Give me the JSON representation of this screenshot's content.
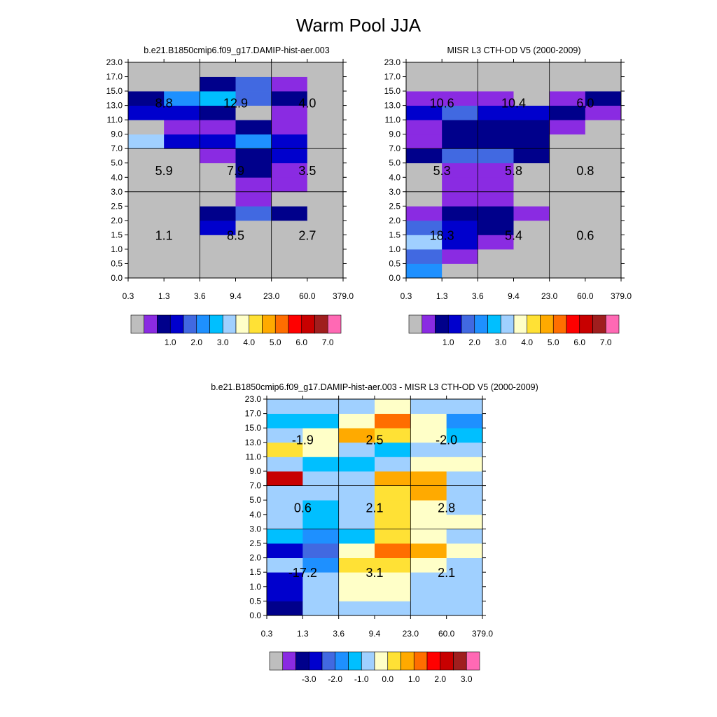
{
  "title": "Warm Pool JJA",
  "palette": {
    "gray": "#bebebe",
    "colors": [
      "#bebebe",
      "#8a2be2",
      "#00008b",
      "#0000cd",
      "#4169e1",
      "#1e90ff",
      "#00bfff",
      "#a0d0ff",
      "#ffffc8",
      "#ffe135",
      "#ffaa00",
      "#ff6e00",
      "#ff0000",
      "#c80000",
      "#a01e1e",
      "#ff69b4"
    ],
    "missing_color": "gray"
  },
  "chart_data": [
    {
      "type": "heatmap",
      "title": "b.e21.B1850cmip6.f09_g17.DAMIP-hist-aer.003",
      "xlabel": "",
      "ylabel": "",
      "x_ticks": [
        "0.3",
        "1.3",
        "3.6",
        "9.4",
        "23.0",
        "60.0",
        "379.0"
      ],
      "y_ticks": [
        "0.0",
        "0.5",
        "1.0",
        "1.5",
        "2.0",
        "2.5",
        "3.0",
        "4.0",
        "5.0",
        "7.0",
        "9.0",
        "11.0",
        "13.0",
        "15.0",
        "17.0",
        "23.0"
      ],
      "box_dividers_x": [
        "3.6",
        "23.0"
      ],
      "box_dividers_y": [
        "3.0",
        "7.0"
      ],
      "cells": [
        [
          "0",
          "0",
          "0",
          "0",
          "0",
          "0"
        ],
        [
          "0",
          "0",
          "0",
          "0",
          "0",
          "0"
        ],
        [
          "0",
          "0",
          "0",
          "0",
          "0",
          "0"
        ],
        [
          "0",
          "0",
          "3",
          "0",
          "0",
          "0"
        ],
        [
          "0",
          "0",
          "2",
          "4",
          "2",
          "0"
        ],
        [
          "0",
          "0",
          "0",
          "1",
          "0",
          "0"
        ],
        [
          "0",
          "0",
          "0",
          "1",
          "1",
          "0"
        ],
        [
          "0",
          "0",
          "0",
          "2",
          "1",
          "0"
        ],
        [
          "0",
          "0",
          "1",
          "2",
          "3",
          "0"
        ],
        [
          "7",
          "3",
          "3",
          "5",
          "3",
          "0"
        ],
        [
          "0",
          "1",
          "1",
          "2",
          "1",
          "0"
        ],
        [
          "3",
          "3",
          "2",
          "0",
          "1",
          "0"
        ],
        [
          "2",
          "5",
          "6",
          "4",
          "2",
          "0"
        ],
        [
          "0",
          "0",
          "2",
          "4",
          "1",
          "0"
        ],
        [
          "0",
          "0",
          "0",
          "0",
          "0",
          "0"
        ]
      ],
      "box_values": [
        [
          "1.1",
          "8.5",
          "2.7"
        ],
        [
          "5.9",
          "7.9",
          "3.5"
        ],
        [
          "8.8",
          "12.9",
          "4.0"
        ]
      ],
      "colorbar_labels": [
        "1.0",
        "2.0",
        "3.0",
        "4.0",
        "5.0",
        "6.0",
        "7.0"
      ]
    },
    {
      "type": "heatmap",
      "title": "MISR L3 CTH-OD V5 (2000-2009)",
      "xlabel": "",
      "ylabel": "",
      "x_ticks": [
        "0.3",
        "1.3",
        "3.6",
        "9.4",
        "23.0",
        "60.0",
        "379.0"
      ],
      "y_ticks": [
        "0.0",
        "0.5",
        "1.0",
        "1.5",
        "2.0",
        "2.5",
        "3.0",
        "4.0",
        "5.0",
        "7.0",
        "9.0",
        "11.0",
        "13.0",
        "15.0",
        "17.0",
        "23.0"
      ],
      "box_dividers_x": [
        "3.6",
        "23.0"
      ],
      "box_dividers_y": [
        "3.0",
        "7.0"
      ],
      "cells": [
        [
          "5",
          "0",
          "0",
          "0",
          "0",
          "0"
        ],
        [
          "4",
          "1",
          "0",
          "0",
          "0",
          "0"
        ],
        [
          "7",
          "3",
          "1",
          "0",
          "0",
          "0"
        ],
        [
          "4",
          "3",
          "2",
          "0",
          "0",
          "0"
        ],
        [
          "1",
          "2",
          "2",
          "1",
          "0",
          "0"
        ],
        [
          "0",
          "1",
          "1",
          "0",
          "0",
          "0"
        ],
        [
          "0",
          "1",
          "1",
          "0",
          "0",
          "0"
        ],
        [
          "0",
          "1",
          "1",
          "0",
          "0",
          "0"
        ],
        [
          "2",
          "4",
          "4",
          "2",
          "0",
          "0"
        ],
        [
          "1",
          "2",
          "2",
          "2",
          "0",
          "0"
        ],
        [
          "1",
          "2",
          "2",
          "2",
          "1",
          "0"
        ],
        [
          "3",
          "4",
          "3",
          "3",
          "2",
          "1"
        ],
        [
          "1",
          "1",
          "1",
          "0",
          "1",
          "2"
        ],
        [
          "0",
          "0",
          "0",
          "0",
          "0",
          "0"
        ],
        [
          "0",
          "0",
          "0",
          "0",
          "0",
          "0"
        ]
      ],
      "box_values": [
        [
          "18.3",
          "5.4",
          "0.6"
        ],
        [
          "5.3",
          "5.8",
          "0.8"
        ],
        [
          "10.6",
          "10.4",
          "6.0"
        ]
      ],
      "colorbar_labels": [
        "1.0",
        "2.0",
        "3.0",
        "4.0",
        "5.0",
        "6.0",
        "7.0"
      ]
    },
    {
      "type": "heatmap",
      "title": "b.e21.B1850cmip6.f09_g17.DAMIP-hist-aer.003 - MISR L3 CTH-OD V5 (2000-2009)",
      "xlabel": "",
      "ylabel": "",
      "x_ticks": [
        "0.3",
        "1.3",
        "3.6",
        "9.4",
        "23.0",
        "60.0",
        "379.0"
      ],
      "y_ticks": [
        "0.0",
        "0.5",
        "1.0",
        "1.5",
        "2.0",
        "2.5",
        "3.0",
        "4.0",
        "5.0",
        "7.0",
        "9.0",
        "11.0",
        "13.0",
        "15.0",
        "17.0",
        "23.0"
      ],
      "box_dividers_x": [
        "3.6",
        "23.0"
      ],
      "box_dividers_y": [
        "3.0",
        "7.0"
      ],
      "cells": [
        [
          "2",
          "7",
          "7",
          "7",
          "7",
          "7"
        ],
        [
          "3",
          "7",
          "8",
          "8",
          "7",
          "7"
        ],
        [
          "3",
          "7",
          "8",
          "8",
          "7",
          "7"
        ],
        [
          "7",
          "5",
          "9",
          "9",
          "8",
          "7"
        ],
        [
          "3",
          "4",
          "8",
          "11",
          "10",
          "8"
        ],
        [
          "6",
          "5",
          "6",
          "9",
          "8",
          "7"
        ],
        [
          "7",
          "6",
          "7",
          "9",
          "8",
          "8"
        ],
        [
          "7",
          "6",
          "7",
          "9",
          "8",
          "7"
        ],
        [
          "7",
          "7",
          "7",
          "9",
          "10",
          "7"
        ],
        [
          "13",
          "7",
          "7",
          "10",
          "10",
          "7"
        ],
        [
          "7",
          "6",
          "6",
          "7",
          "8",
          "8"
        ],
        [
          "9",
          "8",
          "7",
          "6",
          "7",
          "7"
        ],
        [
          "7",
          "8",
          "10",
          "9",
          "8",
          "6"
        ],
        [
          "6",
          "6",
          "8",
          "11",
          "8",
          "5"
        ],
        [
          "7",
          "7",
          "7",
          "8",
          "7",
          "7"
        ]
      ],
      "box_values": [
        [
          "-17.2",
          "3.1",
          "2.1"
        ],
        [
          "0.6",
          "2.1",
          "2.8"
        ],
        [
          "-1.9",
          "2.5",
          "-2.0"
        ]
      ],
      "colorbar_labels": [
        "-3.0",
        "-2.0",
        "-1.0",
        "0.0",
        "1.0",
        "2.0",
        "3.0"
      ]
    }
  ]
}
